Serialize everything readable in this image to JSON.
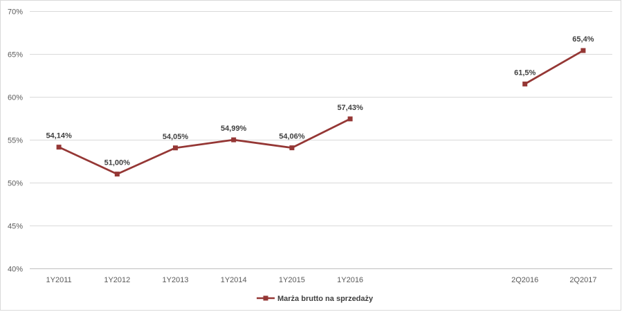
{
  "chart_data": {
    "type": "line",
    "categories": [
      "1Y2011",
      "1Y2012",
      "1Y2013",
      "1Y2014",
      "1Y2015",
      "1Y2016",
      "",
      "",
      "2Q2016",
      "2Q2017"
    ],
    "series": [
      {
        "name": "Marża brutto na sprzedaży",
        "color": "#953735",
        "values": [
          54.14,
          51.0,
          54.05,
          54.99,
          54.06,
          57.43,
          null,
          null,
          61.5,
          65.4
        ],
        "labels": [
          "54,14%",
          "51,00%",
          "54,05%",
          "54,99%",
          "54,06%",
          "57,43%",
          null,
          null,
          "61,5%",
          "65,4%"
        ]
      }
    ],
    "y_ticks": [
      "40%",
      "45%",
      "50%",
      "55%",
      "60%",
      "65%",
      "70%"
    ],
    "ylim": [
      40,
      70
    ],
    "grid": true,
    "legend_position": "bottom",
    "title": "",
    "xlabel": "",
    "ylabel": ""
  }
}
